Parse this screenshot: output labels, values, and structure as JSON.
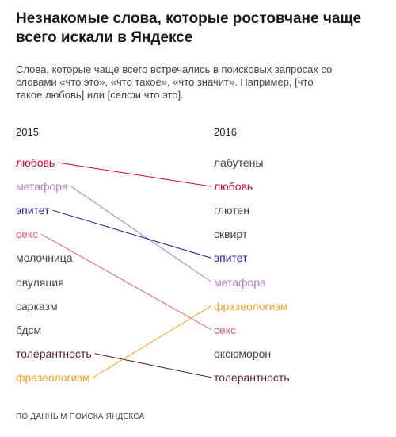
{
  "title": "Незнакомые слова, которые ростовчане чаще всего искали в Яндексе",
  "subtitle": "Слова, которые чаще всего встречались в поисковых запросах со словами «что это», «что такое», «что значит». Например, [что такое любовь] или [селфи что это].",
  "footer": "ПО ДАННЫМ ПОИСКА ЯНДЕКСА",
  "chart_data": {
    "type": "slope",
    "columns": [
      "2015",
      "2016"
    ],
    "left": [
      {
        "word": "любовь",
        "color": "#cc0033"
      },
      {
        "word": "метафора",
        "color": "#b07cc6"
      },
      {
        "word": "эпитет",
        "color": "#1f1a8a"
      },
      {
        "word": "секс",
        "color": "#e05a8a"
      },
      {
        "word": "молочница",
        "color": "#444444"
      },
      {
        "word": "овуляция",
        "color": "#444444"
      },
      {
        "word": "сарказм",
        "color": "#444444"
      },
      {
        "word": "бдсм",
        "color": "#444444"
      },
      {
        "word": "толерантность",
        "color": "#5a1a3a"
      },
      {
        "word": "фразеологизм",
        "color": "#f5a020"
      }
    ],
    "right": [
      {
        "word": "лабутены",
        "color": "#444444"
      },
      {
        "word": "любовь",
        "color": "#cc0033"
      },
      {
        "word": "глютен",
        "color": "#444444"
      },
      {
        "word": "сквирт",
        "color": "#444444"
      },
      {
        "word": "эпитет",
        "color": "#1f1a8a"
      },
      {
        "word": "метафора",
        "color": "#b07cc6"
      },
      {
        "word": "фразеологизм",
        "color": "#f5a020"
      },
      {
        "word": "секс",
        "color": "#e05a8a"
      },
      {
        "word": "оксюморон",
        "color": "#444444"
      },
      {
        "word": "толерантность",
        "color": "#5a1a3a"
      }
    ],
    "links": [
      {
        "word": "любовь",
        "from_rank": 1,
        "to_rank": 2,
        "color": "#cc0033"
      },
      {
        "word": "метафора",
        "from_rank": 2,
        "to_rank": 6,
        "color": "#b07cc6"
      },
      {
        "word": "эпитет",
        "from_rank": 3,
        "to_rank": 5,
        "color": "#1f1a8a"
      },
      {
        "word": "секс",
        "from_rank": 4,
        "to_rank": 8,
        "color": "#e05a8a"
      },
      {
        "word": "толерантность",
        "from_rank": 9,
        "to_rank": 10,
        "color": "#5a1a3a"
      },
      {
        "word": "фразеологизм",
        "from_rank": 10,
        "to_rank": 7,
        "color": "#f5a020"
      }
    ]
  }
}
